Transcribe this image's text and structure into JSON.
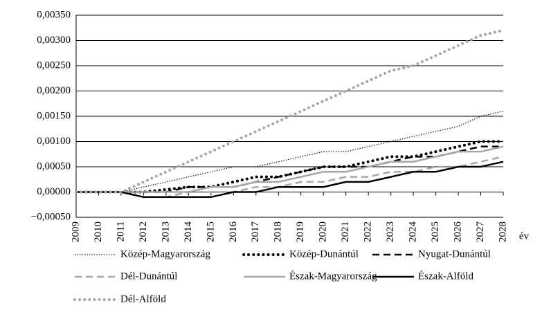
{
  "chart_data": {
    "type": "line",
    "x_label": "év",
    "categories": [
      "2009",
      "2010",
      "2011",
      "2012",
      "2013",
      "2014",
      "2015",
      "2016",
      "2017",
      "2018",
      "2019",
      "2020",
      "2021",
      "2022",
      "2023",
      "2024",
      "2025",
      "2026",
      "2027",
      "2028"
    ],
    "ylim": [
      -0.0005,
      0.0035
    ],
    "yticks": [
      {
        "value": -0.0005,
        "label": "−0,00050"
      },
      {
        "value": 0,
        "label": "0,00000"
      },
      {
        "value": 0.0005,
        "label": "0,00050"
      },
      {
        "value": 0.001,
        "label": "0,00100"
      },
      {
        "value": 0.0015,
        "label": "0,00150"
      },
      {
        "value": 0.002,
        "label": "0,00200"
      },
      {
        "value": 0.0025,
        "label": "0,00250"
      },
      {
        "value": 0.003,
        "label": "0,00300"
      },
      {
        "value": 0.0035,
        "label": "0,00350"
      }
    ],
    "grid": true,
    "legend": "bottom",
    "series": [
      {
        "name": "Közép-Magyarország",
        "color": "#000000",
        "style": "dotted",
        "values": [
          0,
          0,
          0,
          0.0001,
          0.0002,
          0.0003,
          0.0004,
          0.0005,
          0.0005,
          0.0006,
          0.0007,
          0.0008,
          0.0008,
          0.0009,
          0.001,
          0.0011,
          0.0012,
          0.0013,
          0.0015,
          0.0016
        ]
      },
      {
        "name": "Közép-Dunántúl",
        "color": "#000000",
        "style": "dotted-bold",
        "values": [
          0,
          0,
          0,
          0,
          5e-05,
          0.0001,
          0.0001,
          0.0002,
          0.0003,
          0.0003,
          0.0004,
          0.0005,
          0.0005,
          0.0006,
          0.0007,
          0.0007,
          0.0008,
          0.0009,
          0.001,
          0.001
        ]
      },
      {
        "name": "Nyugat-Dunántúl",
        "color": "#000000",
        "style": "dashed",
        "values": [
          0,
          0,
          0,
          0,
          0,
          0.0001,
          0.0001,
          0.0001,
          0.0002,
          0.0003,
          0.0004,
          0.0005,
          0.0005,
          0.0005,
          0.0006,
          0.0007,
          0.0007,
          0.0008,
          0.0009,
          0.0009
        ]
      },
      {
        "name": "Dél-Dunántúl",
        "color": "#a6a6a6",
        "style": "dashed",
        "values": [
          0,
          0,
          0,
          -0.0001,
          -0.0001,
          0,
          0,
          0,
          0.0001,
          0.0001,
          0.0002,
          0.0002,
          0.0003,
          0.0003,
          0.0004,
          0.0004,
          0.0005,
          0.0005,
          0.0006,
          0.0007
        ]
      },
      {
        "name": "Észak-Magyarország",
        "color": "#a6a6a6",
        "style": "solid",
        "values": [
          0,
          0,
          0,
          0,
          0,
          0,
          0.0001,
          0.0001,
          0.0002,
          0.0002,
          0.0003,
          0.0004,
          0.0004,
          0.0005,
          0.0006,
          0.0006,
          0.0007,
          0.0008,
          0.0008,
          0.0009
        ]
      },
      {
        "name": "Észak-Alföld",
        "color": "#000000",
        "style": "solid",
        "values": [
          0,
          0,
          0,
          -0.0001,
          -0.0001,
          -0.0001,
          -0.0001,
          0,
          0,
          0.0001,
          0.0001,
          0.0001,
          0.0002,
          0.0002,
          0.0003,
          0.0004,
          0.0004,
          0.0005,
          0.0005,
          0.0006
        ]
      },
      {
        "name": "Dél-Alföld",
        "color": "#a6a6a6",
        "style": "dotted-bold",
        "values": [
          0,
          0,
          0,
          0.0002,
          0.0004,
          0.0006,
          0.0008,
          0.001,
          0.0012,
          0.0014,
          0.0016,
          0.0018,
          0.002,
          0.0022,
          0.0024,
          0.0025,
          0.0027,
          0.0029,
          0.0031,
          0.0032
        ]
      }
    ]
  }
}
